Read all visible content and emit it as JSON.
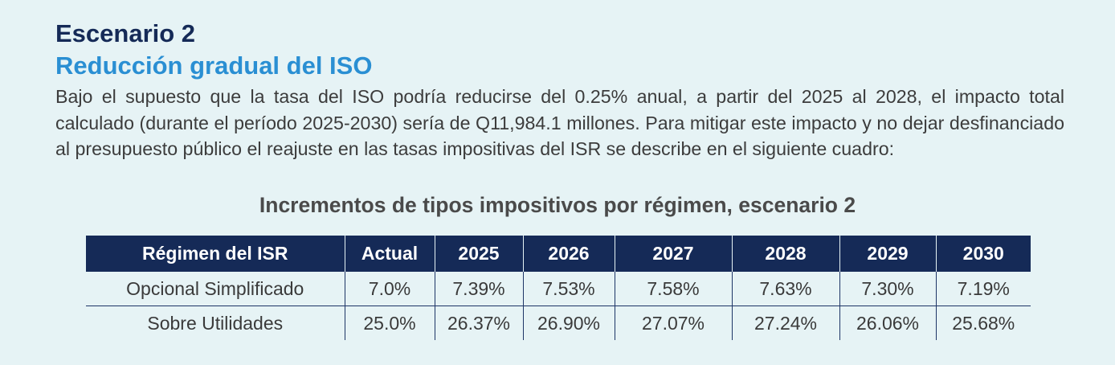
{
  "heading": "Escenario 2",
  "subheading": "Reducción gradual del ISO",
  "paragraph": "Bajo el supuesto que la tasa del ISO podría reducirse del 0.25% anual, a partir del 2025 al 2028, el impacto total calculado (durante el período 2025-2030) sería de Q11,984.1 millones. Para mitigar este impacto y no dejar desfinanciado al presupuesto público el reajuste en las tasas impositivas del ISR se describe en el siguiente cuadro:",
  "table": {
    "title": "Incrementos de tipos impositivos por régimen, escenario 2",
    "headers": [
      "Régimen del ISR",
      "Actual",
      "2025",
      "2026",
      "2027",
      "2028",
      "2029",
      "2030"
    ],
    "rows": [
      [
        "Opcional Simplificado",
        "7.0%",
        "7.39%",
        "7.53%",
        "7.58%",
        "7.63%",
        "7.30%",
        "7.19%"
      ],
      [
        "Sobre Utilidades",
        "25.0%",
        "26.37%",
        "26.90%",
        "27.07%",
        "27.24%",
        "26.06%",
        "25.68%"
      ]
    ]
  },
  "colors": {
    "background": "#e6f3f5",
    "header_fill": "#152a57",
    "heading": "#152a57",
    "subheading": "#2a8fd3"
  }
}
